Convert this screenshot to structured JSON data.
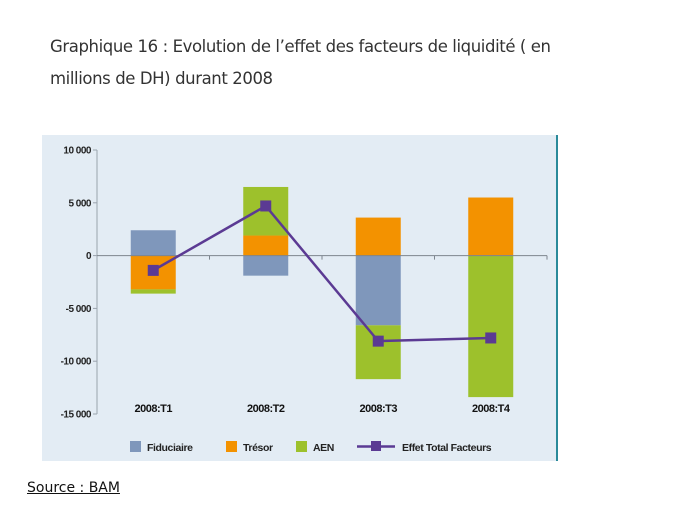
{
  "title": "Graphique 16 : Evolution de l’effet des facteurs de liquidité ( en millions de DH) durant 2008",
  "source": "Source : BAM",
  "colors": {
    "Fiduciaire": "#7f97bb",
    "Trésor": "#f39200",
    "AEN": "#9dc12c",
    "Effet Total Facteurs": "#5b3a93"
  },
  "chart_data": {
    "type": "bar",
    "stacked": true,
    "title": "Graphique 16 : Evolution de l’effet des facteurs de liquidité ( en millions de DH) durant 2008",
    "xlabel": "",
    "ylabel": "",
    "categories": [
      "2008:T1",
      "2008:T2",
      "2008:T3",
      "2008:T4"
    ],
    "ylim": [
      -15000,
      10000
    ],
    "yticks": [
      10000,
      5000,
      0,
      -5000,
      -10000,
      -15000
    ],
    "ytick_labels": [
      "10 000",
      "5 000",
      "0",
      "-5 000",
      "-10 000",
      "-15 000"
    ],
    "grid": false,
    "legend_position": "bottom",
    "series": [
      {
        "name": "Fiduciaire",
        "type": "bar",
        "values": [
          2400,
          -1900,
          -6600,
          0
        ]
      },
      {
        "name": "Trésor",
        "type": "bar",
        "values": [
          -3200,
          1900,
          3600,
          5500
        ]
      },
      {
        "name": "AEN",
        "type": "bar",
        "values": [
          -400,
          4600,
          -5100,
          -13400
        ]
      },
      {
        "name": "Effet Total Facteurs",
        "type": "line",
        "values": [
          -1400,
          4700,
          -8100,
          -7800
        ]
      }
    ]
  }
}
